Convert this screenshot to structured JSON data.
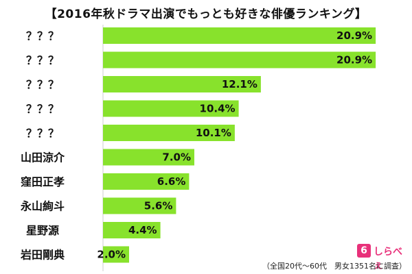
{
  "chart_data": {
    "type": "bar",
    "orientation": "horizontal",
    "title": "【2016年秋ドラマ出演でもっとも好きな俳優ランキング】",
    "categories": [
      "？？？",
      "？？？",
      "？？？",
      "？？？",
      "？？？",
      "山田涼介",
      "窪田正孝",
      "永山絢斗",
      "星野源",
      "岩田剛典"
    ],
    "values": [
      20.9,
      20.9,
      12.1,
      10.4,
      10.1,
      7.0,
      6.6,
      5.6,
      4.4,
      2.0
    ],
    "value_labels": [
      "20.9%",
      "20.9%",
      "12.1%",
      "10.4%",
      "10.1%",
      "7.0%",
      "6.6%",
      "5.6%",
      "4.4%",
      "2.0%"
    ],
    "xlim": [
      0,
      22
    ],
    "bar_color": "#88e22c",
    "grid": false,
    "legend": "none"
  },
  "footnote": "（全国20代～60代　男女1351名に調査）",
  "logo": {
    "badge_text": "6",
    "text": "しらべぇ",
    "color": "#e8317a"
  }
}
